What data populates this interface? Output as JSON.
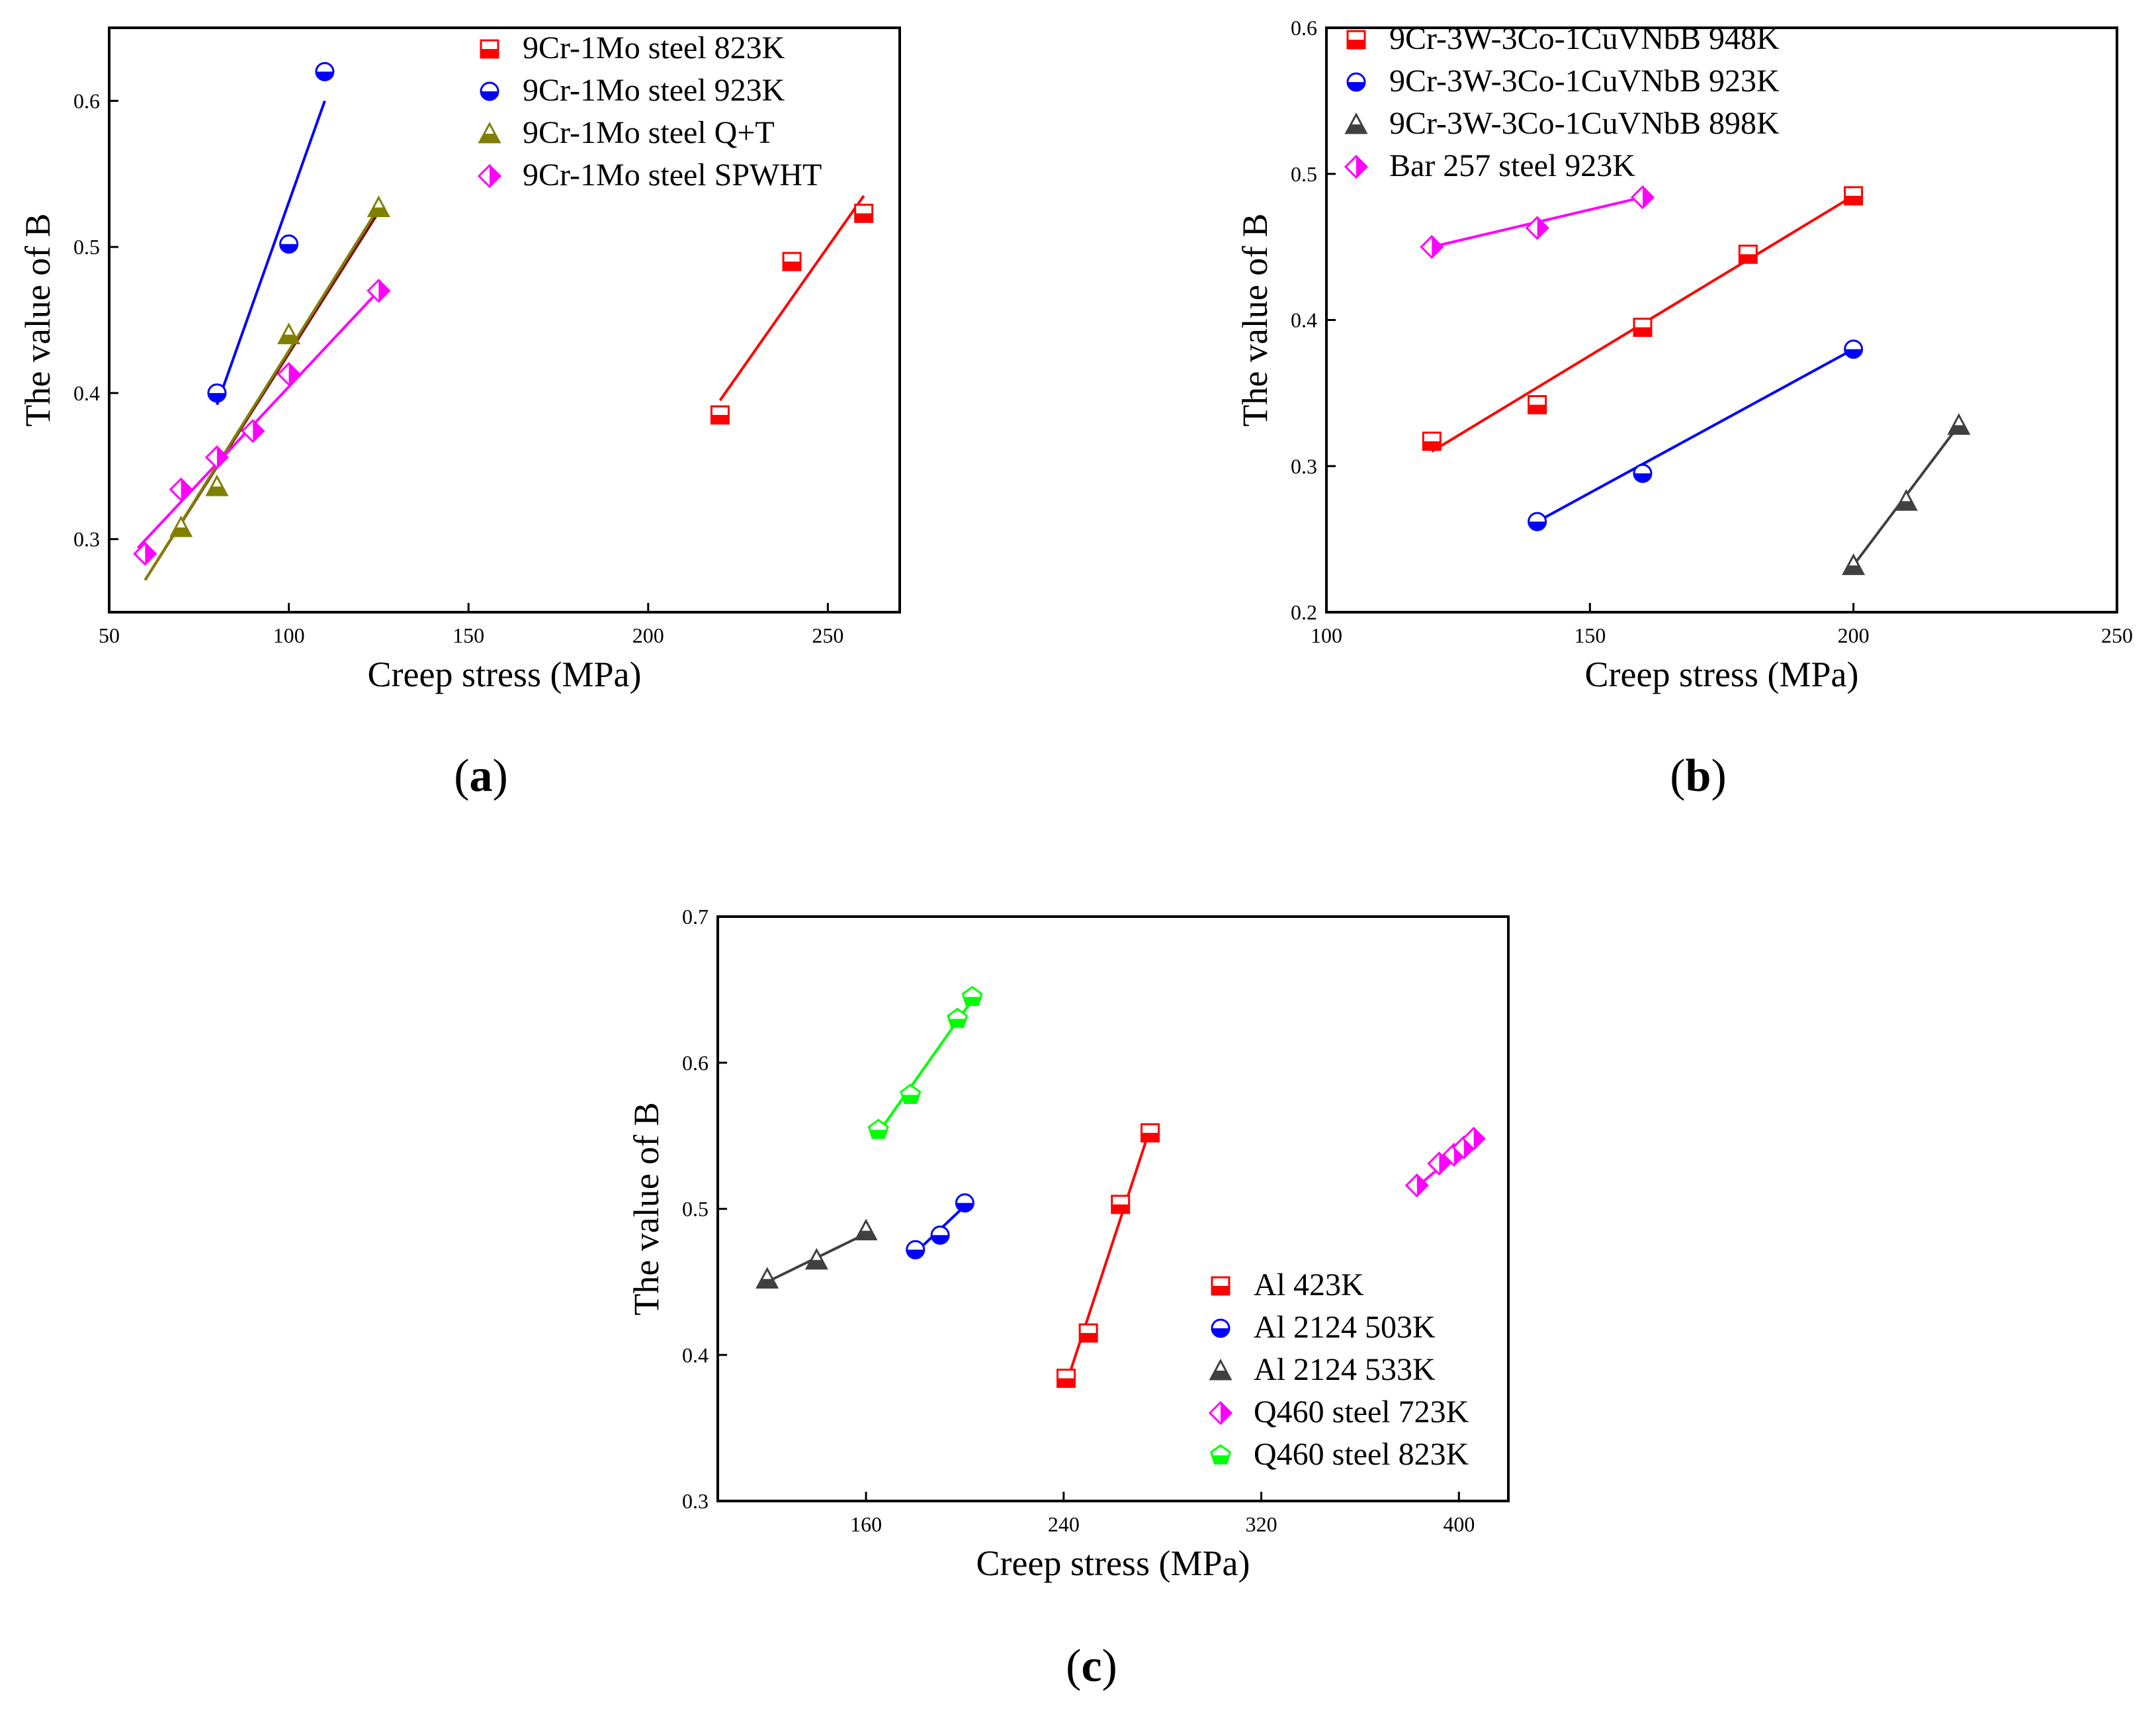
{
  "chart_data": [
    {
      "type": "scatter",
      "panel_label": "(a)",
      "xlabel": "Creep stress (MPa)",
      "ylabel": "The value of B",
      "xlim": [
        50,
        270
      ],
      "ylim": [
        0.25,
        0.65
      ],
      "xticks": [
        50,
        100,
        150,
        200,
        250
      ],
      "yticks": [
        0.3,
        0.4,
        0.5,
        0.6
      ],
      "legend_position": "top-right",
      "series": [
        {
          "name": "9Cr-1Mo steel 823K",
          "color": "#ff0000",
          "marker": "square",
          "points": [
            [
              220,
              0.385
            ],
            [
              240,
              0.49
            ],
            [
              260,
              0.523
            ]
          ],
          "fit": [
            [
              220,
              0.395
            ],
            [
              260,
              0.535
            ]
          ]
        },
        {
          "name": "9Cr-1Mo steel 923K",
          "color": "#0000ff",
          "marker": "circle",
          "points": [
            [
              80,
              0.4
            ],
            [
              100,
              0.502
            ],
            [
              110,
              0.62
            ]
          ],
          "fit": [
            [
              80,
              0.392
            ],
            [
              110,
              0.6
            ]
          ]
        },
        {
          "name": "9Cr-1Mo steel Q+T",
          "color": "#808000",
          "marker": "triangle",
          "points": [
            [
              70,
              0.308
            ],
            [
              80,
              0.336
            ],
            [
              100,
              0.44
            ],
            [
              125,
              0.527
            ]
          ],
          "fit": [
            [
              60,
              0.272
            ],
            [
              125,
              0.527
            ]
          ]
        },
        {
          "name": "9Cr-1Mo steel SPWHT",
          "color": "#ff00ff",
          "marker": "diamond",
          "points": [
            [
              60,
              0.29
            ],
            [
              70,
              0.334
            ],
            [
              80,
              0.356
            ],
            [
              90,
              0.374
            ],
            [
              100,
              0.413
            ],
            [
              125,
              0.47
            ]
          ],
          "fit": [
            [
              58,
              0.294
            ],
            [
              125,
              0.47
            ]
          ]
        }
      ],
      "extra_fits": [
        {
          "color": "#800000",
          "fit": [
            [
              60,
              0.272
            ],
            [
              125,
              0.524
            ]
          ]
        }
      ]
    },
    {
      "type": "scatter",
      "panel_label": "(b)",
      "xlabel": "Creep stress (MPa)",
      "ylabel": "The value of B",
      "xlim": [
        100,
        250
      ],
      "ylim": [
        0.2,
        0.6
      ],
      "xticks": [
        100,
        150,
        200,
        250
      ],
      "yticks": [
        0.2,
        0.3,
        0.4,
        0.5,
        0.6
      ],
      "legend_position": "top-left",
      "series": [
        {
          "name": "9Cr-3W-3Co-1CuVNbB 948K",
          "color": "#ff0000",
          "marker": "square",
          "points": [
            [
              120,
              0.317
            ],
            [
              140,
              0.342
            ],
            [
              160,
              0.395
            ],
            [
              180,
              0.445
            ],
            [
              200,
              0.485
            ]
          ],
          "fit": [
            [
              120,
              0.31
            ],
            [
              200,
              0.485
            ]
          ]
        },
        {
          "name": "9Cr-3W-3Co-1CuVNbB 923K",
          "color": "#0000ff",
          "marker": "circle",
          "points": [
            [
              140,
              0.262
            ],
            [
              160,
              0.295
            ],
            [
              200,
              0.38
            ]
          ],
          "fit": [
            [
              140,
              0.262
            ],
            [
              200,
              0.38
            ]
          ]
        },
        {
          "name": "9Cr-3W-3Co-1CuVNbB 898K",
          "color": "#404040",
          "marker": "triangle",
          "points": [
            [
              200,
              0.232
            ],
            [
              210,
              0.276
            ],
            [
              220,
              0.328
            ]
          ],
          "fit": [
            [
              200,
              0.232
            ],
            [
              220,
              0.328
            ]
          ]
        },
        {
          "name": "Bar 257 steel 923K",
          "color": "#ff00ff",
          "marker": "diamond",
          "points": [
            [
              120,
              0.45
            ],
            [
              140,
              0.463
            ],
            [
              160,
              0.484
            ]
          ],
          "fit": [
            [
              120,
              0.45
            ],
            [
              160,
              0.484
            ]
          ]
        }
      ]
    },
    {
      "type": "scatter",
      "panel_label": "(c)",
      "xlabel": "Creep stress (MPa)",
      "ylabel": "The value of B",
      "xlim": [
        100,
        420
      ],
      "ylim": [
        0.3,
        0.7
      ],
      "xticks": [
        160,
        240,
        320,
        400
      ],
      "yticks": [
        0.3,
        0.4,
        0.5,
        0.6,
        0.7
      ],
      "legend_position": "bottom-right",
      "series": [
        {
          "name": "Al 423K",
          "color": "#ff0000",
          "marker": "square",
          "points": [
            [
              241,
              0.384
            ],
            [
              250,
              0.415
            ],
            [
              263,
              0.503
            ],
            [
              275,
              0.552
            ]
          ],
          "fit": [
            [
              241,
              0.38
            ],
            [
              275,
              0.555
            ]
          ]
        },
        {
          "name": "Al 2124 503K",
          "color": "#0000ff",
          "marker": "circle",
          "points": [
            [
              180,
              0.472
            ],
            [
              190,
              0.482
            ],
            [
              200,
              0.504
            ]
          ],
          "fit": [
            [
              180,
              0.47
            ],
            [
              200,
              0.502
            ]
          ]
        },
        {
          "name": "Al 2124 533K",
          "color": "#404040",
          "marker": "triangle",
          "points": [
            [
              120,
              0.452
            ],
            [
              140,
              0.465
            ],
            [
              160,
              0.485
            ]
          ],
          "fit": [
            [
              120,
              0.45
            ],
            [
              160,
              0.483
            ]
          ]
        },
        {
          "name": "Q460 steel 723K",
          "color": "#ff00ff",
          "marker": "diamond",
          "points": [
            [
              383,
              0.516
            ],
            [
              392,
              0.531
            ],
            [
              398,
              0.537
            ],
            [
              402,
              0.542
            ],
            [
              406,
              0.548
            ]
          ],
          "fit": [
            [
              383,
              0.515
            ],
            [
              406,
              0.548
            ]
          ]
        },
        {
          "name": "Q460 steel 823K",
          "color": "#00ff00",
          "marker": "pentagon",
          "points": [
            [
              165,
              0.554
            ],
            [
              178,
              0.578
            ],
            [
              197,
              0.63
            ],
            [
              203,
              0.645
            ]
          ],
          "fit": [
            [
              165,
              0.552
            ],
            [
              203,
              0.643
            ]
          ]
        }
      ]
    }
  ]
}
